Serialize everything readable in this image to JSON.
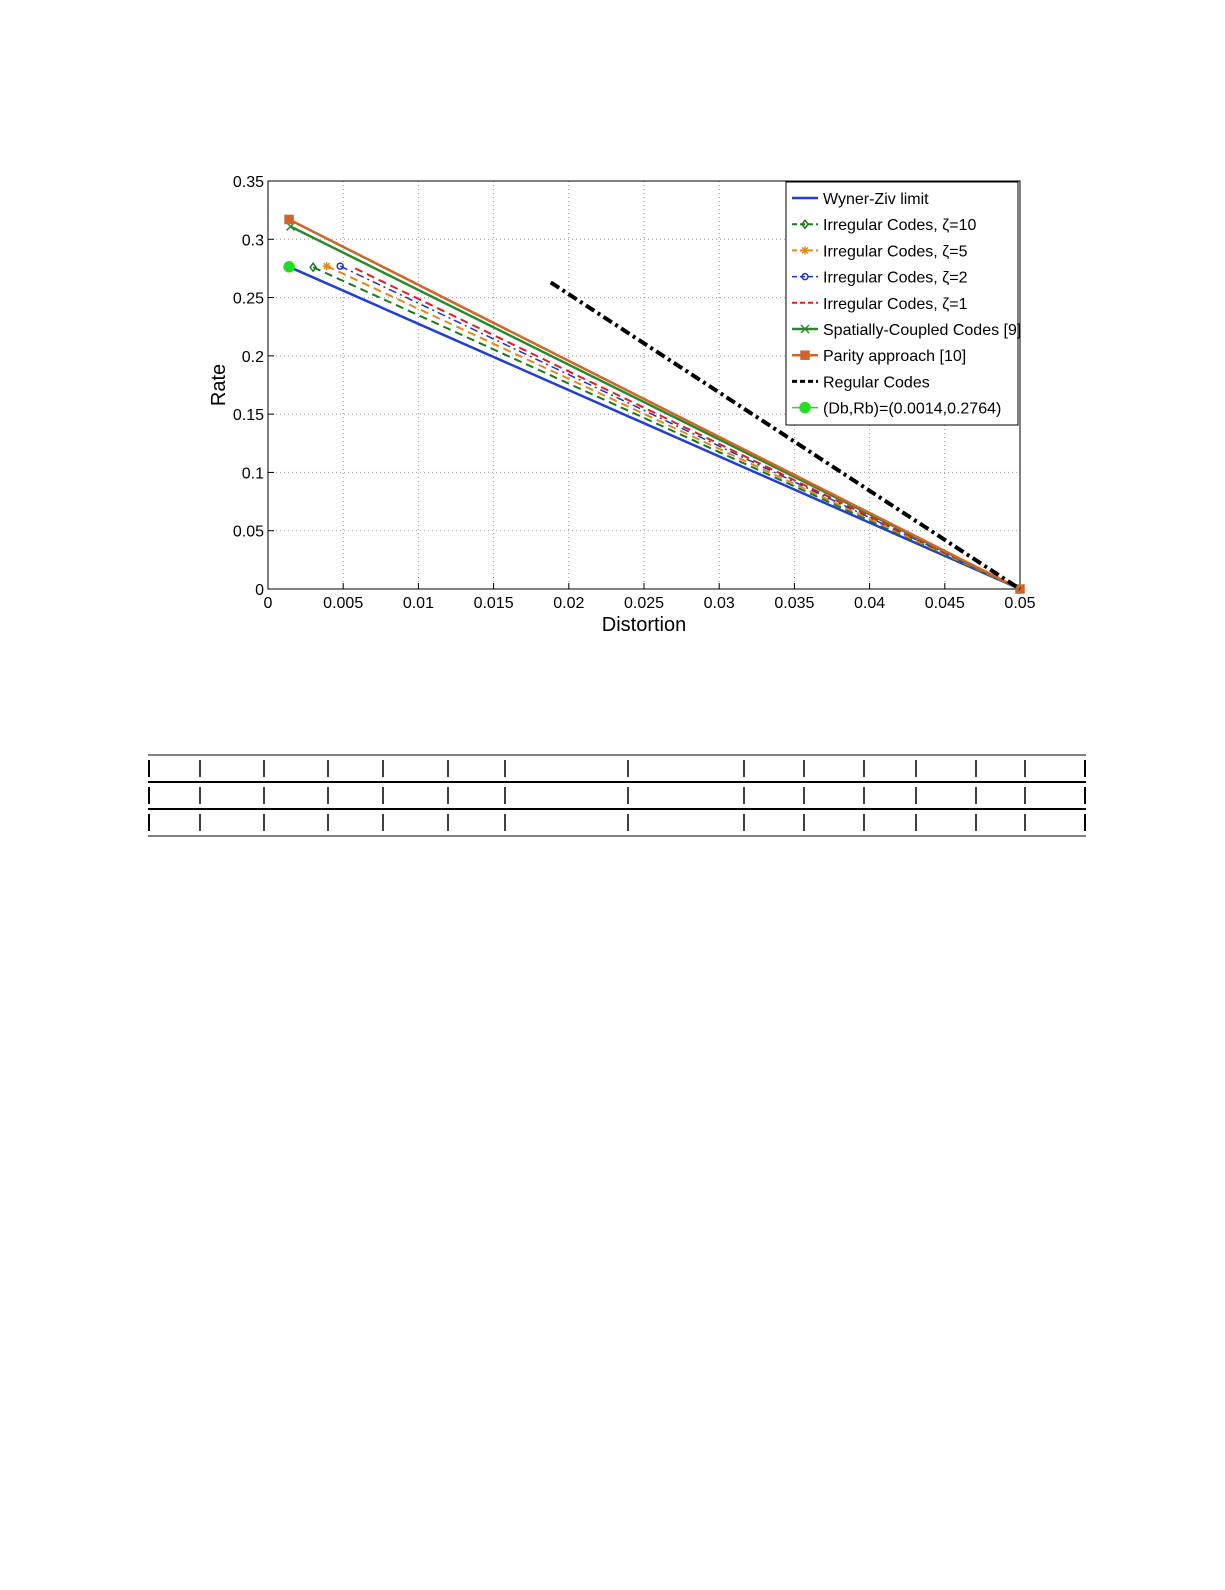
{
  "chart_data": {
    "type": "line",
    "xlabel": "Distortion",
    "ylabel": "Rate",
    "xlim": [
      0,
      0.05
    ],
    "ylim": [
      0,
      0.35
    ],
    "xticks": [
      0,
      0.005,
      0.01,
      0.015,
      0.02,
      0.025,
      0.03,
      0.035,
      0.04,
      0.045,
      0.05
    ],
    "yticks": [
      0,
      0.05,
      0.1,
      0.15,
      0.2,
      0.25,
      0.3,
      0.35
    ],
    "grid": true,
    "legend": "upper right",
    "series": [
      {
        "name": "Wyner-Ziv limit",
        "color": "#1f3fd6",
        "style": "solid",
        "marker": "none",
        "x": [
          0.0014,
          0.05
        ],
        "values": [
          0.2764,
          0
        ]
      },
      {
        "name": "Irregular Codes, ζ=10",
        "color": "#1b7a1b",
        "style": "dashed",
        "marker": "diamond",
        "x": [
          0.003,
          0.05
        ],
        "values": [
          0.276,
          0
        ]
      },
      {
        "name": "Irregular Codes, ζ=5",
        "color": "#e08a1e",
        "style": "dashed",
        "marker": "star",
        "x": [
          0.0039,
          0.05
        ],
        "values": [
          0.277,
          0
        ]
      },
      {
        "name": "Irregular Codes, ζ=2",
        "color": "#2030d0",
        "style": "dashdot",
        "marker": "circle",
        "x": [
          0.0048,
          0.05
        ],
        "values": [
          0.277,
          0
        ]
      },
      {
        "name": "Irregular Codes, ζ=1",
        "color": "#e02020",
        "style": "dashed",
        "marker": "none",
        "x": [
          0.0058,
          0.05
        ],
        "values": [
          0.275,
          0
        ]
      },
      {
        "name": "Spatially-Coupled Codes [9]",
        "color": "#2a8a2a",
        "style": "solid",
        "marker": "x",
        "x": [
          0.0015,
          0.05
        ],
        "values": [
          0.311,
          0
        ]
      },
      {
        "name": "Parity approach [10]",
        "color": "#d0642a",
        "style": "solid",
        "marker": "square",
        "x": [
          0.0014,
          0.05
        ],
        "values": [
          0.317,
          0
        ]
      },
      {
        "name": "Regular Codes",
        "color": "#000000",
        "style": "thickdashdot",
        "marker": "none",
        "x": [
          0.0188,
          0.05
        ],
        "values": [
          0.263,
          0
        ]
      },
      {
        "name": "(Db,Rb)=(0.0014,0.2764)",
        "color": "#22dd22",
        "style": "none",
        "marker": "dot",
        "x": [
          0.0014
        ],
        "values": [
          0.2764
        ]
      }
    ]
  }
}
